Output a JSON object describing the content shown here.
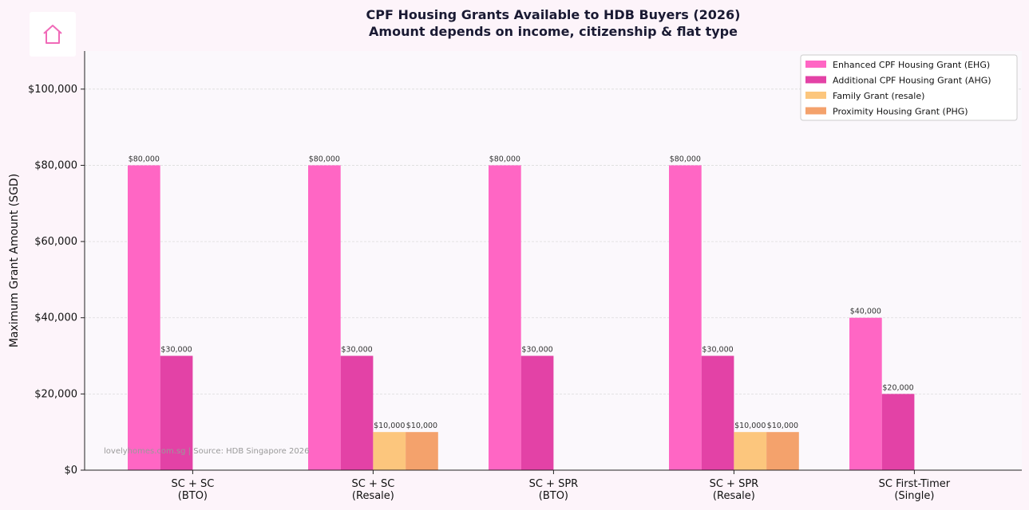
{
  "logo": {
    "icon": "house-icon",
    "color": "#f06ab8"
  },
  "title_line1": "CPF Housing Grants Available to HDB Buyers (2026)",
  "title_line2": "Amount depends on income, citizenship & flat type",
  "watermark": "lovelyhomes.com.sg | Source: HDB Singapore 2026",
  "chart_data": {
    "type": "bar",
    "ylabel": "Maximum Grant Amount (SGD)",
    "xlabel": "",
    "ylim": [
      0,
      110000
    ],
    "yticks": [
      0,
      20000,
      40000,
      60000,
      80000,
      100000
    ],
    "ytick_labels": [
      "$0",
      "$20,000",
      "$40,000",
      "$60,000",
      "$80,000",
      "$100,000"
    ],
    "grid": true,
    "legend_position": "top-right",
    "categories": [
      [
        "SC + SC",
        "(BTO)"
      ],
      [
        "SC + SC",
        "(Resale)"
      ],
      [
        "SC + SPR",
        "(BTO)"
      ],
      [
        "SC + SPR",
        "(Resale)"
      ],
      [
        "SC First-Timer",
        "(Single)"
      ]
    ],
    "series": [
      {
        "name": "Enhanced CPF Housing Grant (EHG)",
        "color": "#ff66c4",
        "values": [
          80000,
          80000,
          80000,
          80000,
          40000
        ],
        "labels": [
          "$80,000",
          "$80,000",
          "$80,000",
          "$80,000",
          "$40,000"
        ]
      },
      {
        "name": "Additional CPF Housing Grant (AHG)",
        "color": "#e342a6",
        "values": [
          30000,
          30000,
          30000,
          30000,
          20000
        ],
        "labels": [
          "$30,000",
          "$30,000",
          "$30,000",
          "$30,000",
          "$20,000"
        ]
      },
      {
        "name": "Family Grant (resale)",
        "color": "#fcc67d",
        "values": [
          0,
          10000,
          0,
          10000,
          0
        ],
        "labels": [
          "",
          "$10,000",
          "",
          "$10,000",
          ""
        ]
      },
      {
        "name": "Proximity Housing Grant (PHG)",
        "color": "#f4a26c",
        "values": [
          0,
          10000,
          0,
          10000,
          0
        ],
        "labels": [
          "",
          "$10,000",
          "",
          "$10,000",
          ""
        ]
      }
    ]
  }
}
